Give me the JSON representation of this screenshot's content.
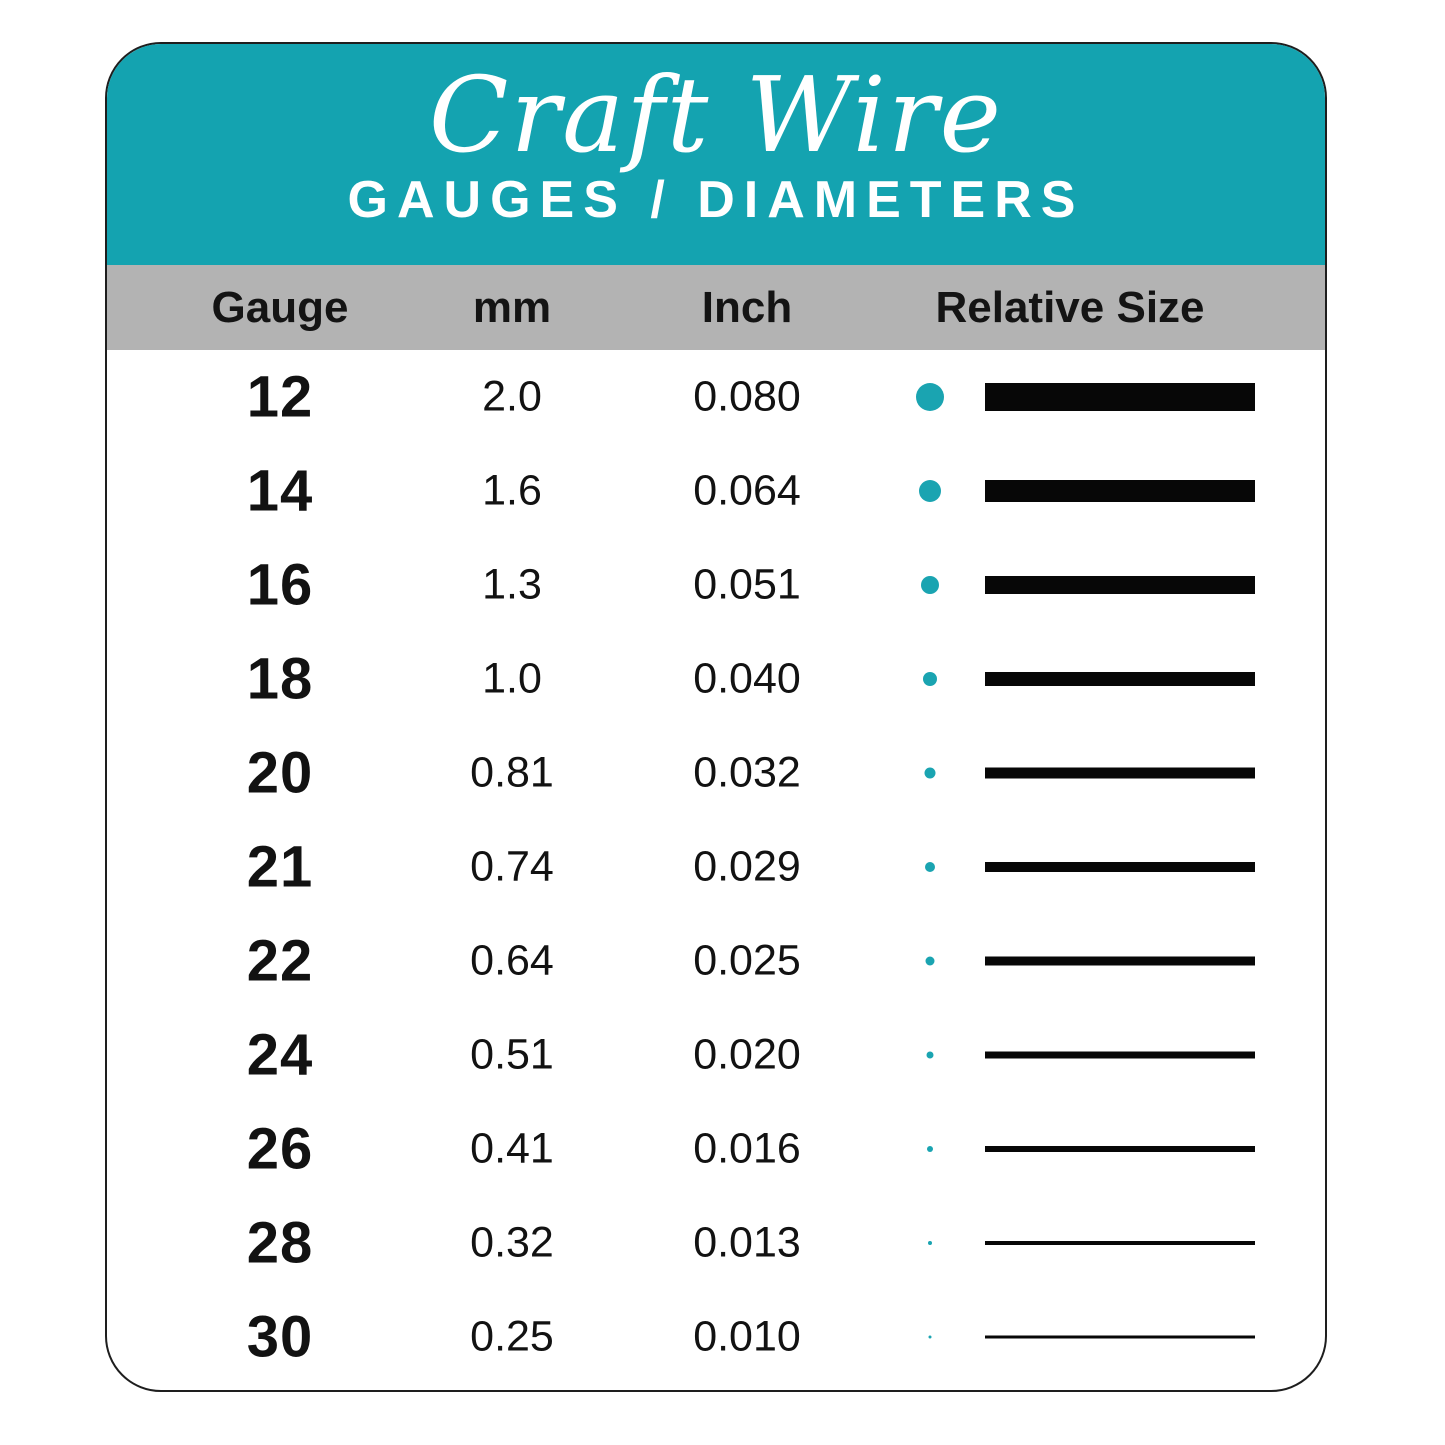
{
  "header": {
    "title": "Craft Wire",
    "subtitle": "GAUGES / DIAMETERS"
  },
  "columns": [
    "Gauge",
    "mm",
    "Inch",
    "Relative Size"
  ],
  "rows": [
    {
      "gauge": "12",
      "mm": "2.0",
      "inch": "0.080"
    },
    {
      "gauge": "14",
      "mm": "1.6",
      "inch": "0.064"
    },
    {
      "gauge": "16",
      "mm": "1.3",
      "inch": "0.051"
    },
    {
      "gauge": "18",
      "mm": "1.0",
      "inch": "0.040"
    },
    {
      "gauge": "20",
      "mm": "0.81",
      "inch": "0.032"
    },
    {
      "gauge": "21",
      "mm": "0.74",
      "inch": "0.029"
    },
    {
      "gauge": "22",
      "mm": "0.64",
      "inch": "0.025"
    },
    {
      "gauge": "24",
      "mm": "0.51",
      "inch": "0.020"
    },
    {
      "gauge": "26",
      "mm": "0.41",
      "inch": "0.016"
    },
    {
      "gauge": "28",
      "mm": "0.32",
      "inch": "0.013"
    },
    {
      "gauge": "30",
      "mm": "0.25",
      "inch": "0.010"
    }
  ],
  "colors": {
    "header_teal": "#14a3b0",
    "band_gray": "#b3b3b3",
    "dot_teal": "#1aa4b1",
    "bar_black": "#070707"
  },
  "chart_data": {
    "type": "table",
    "title": "Craft Wire",
    "subtitle": "GAUGES / DIAMETERS",
    "columns": [
      "Gauge",
      "mm",
      "Inch",
      "Relative Size"
    ],
    "gauges": [
      12,
      14,
      16,
      18,
      20,
      21,
      22,
      24,
      26,
      28,
      30
    ],
    "mm": [
      2.0,
      1.6,
      1.3,
      1.0,
      0.81,
      0.74,
      0.64,
      0.51,
      0.41,
      0.32,
      0.25
    ],
    "inch": [
      0.08,
      0.064,
      0.051,
      0.04,
      0.032,
      0.029,
      0.025,
      0.02,
      0.016,
      0.013,
      0.01
    ],
    "relative_size_encoding": "dot diameter and bar thickness proportional to mm diameter"
  }
}
